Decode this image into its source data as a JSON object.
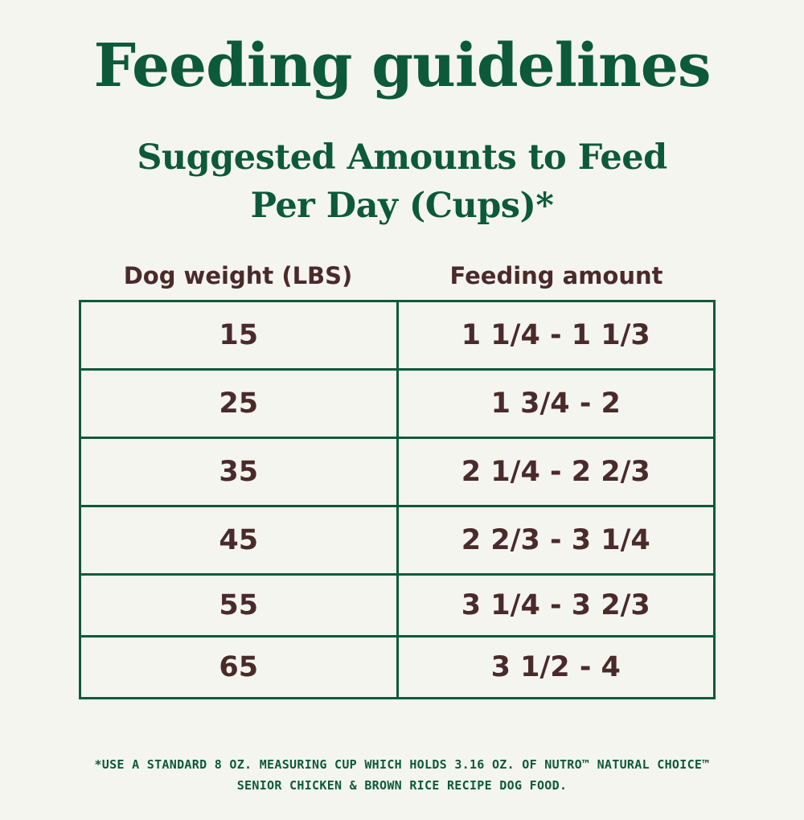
{
  "title": "Feeding guidelines",
  "subtitle": {
    "line1": "Suggested Amounts to Feed",
    "line2": "Per Day (Cups)*"
  },
  "table": {
    "headers": [
      "Dog weight (LBS)",
      "Feeding amount"
    ],
    "rows": [
      {
        "weight": "15",
        "amount": "1 1/4 - 1 1/3"
      },
      {
        "weight": "25",
        "amount": "1 3/4 - 2"
      },
      {
        "weight": "35",
        "amount": "2 1/4 - 2 2/3"
      },
      {
        "weight": "45",
        "amount": "2 2/3 - 3 1/4"
      },
      {
        "weight": "55",
        "amount": "3 1/4 - 3 2/3"
      },
      {
        "weight": "65",
        "amount": "3 1/2 - 4"
      }
    ]
  },
  "footnote": {
    "line1": "*USE A STANDARD 8 OZ. MEASURING CUP WHICH HOLDS 3.16 OZ. OF NUTRO™ NATURAL CHOICE™",
    "line2": "SENIOR CHICKEN & BROWN RICE RECIPE DOG FOOD."
  },
  "colors": {
    "background": "#f5f5f0",
    "brand_green": "#0c5a3a",
    "text_brown": "#4a2a2a"
  }
}
